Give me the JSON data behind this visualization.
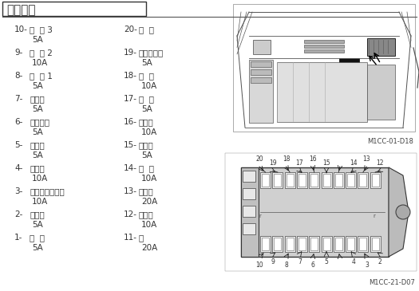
{
  "title": "保险丝盒",
  "bg_color": "#ffffff",
  "left_items": [
    {
      "num": "10-",
      "name": "选  购 3",
      "amp": "5A"
    },
    {
      "num": "9-",
      "name": "选  购 2",
      "amp": "10A"
    },
    {
      "num": "8-",
      "name": "选  购 1",
      "amp": "5A"
    },
    {
      "num": "7-",
      "name": "空调机",
      "amp": "5A"
    },
    {
      "num": "6-",
      "name": "电源接通",
      "amp": "5A"
    },
    {
      "num": "5-",
      "name": "开关盒",
      "amp": "5A"
    },
    {
      "num": "4-",
      "name": "电磁阀",
      "amp": "10A"
    },
    {
      "num": "3-",
      "name": "发动机控制马达",
      "amp": "10A"
    },
    {
      "num": "2-",
      "name": "控制器",
      "amp": "5A"
    },
    {
      "num": "1-",
      "name": "后  备",
      "amp": "5A"
    }
  ],
  "right_items": [
    {
      "num": "20-",
      "name": "备  用",
      "amp": ""
    },
    {
      "num": "19-",
      "name": "辉光继电器",
      "amp": "5A"
    },
    {
      "num": "18-",
      "name": "补  助",
      "amp": "10A"
    },
    {
      "num": "17-",
      "name": "室  灯",
      "amp": "5A"
    },
    {
      "num": "16-",
      "name": "点烟器",
      "amp": "10A"
    },
    {
      "num": "15-",
      "name": "收音机",
      "amp": "5A"
    },
    {
      "num": "14-",
      "name": "喇  叭",
      "amp": "10A"
    },
    {
      "num": "13-",
      "name": "加热器",
      "amp": "20A"
    },
    {
      "num": "12-",
      "name": "刮水器",
      "amp": "10A"
    },
    {
      "num": "11-",
      "name": "灯",
      "amp": "20A"
    }
  ],
  "fig_label1": "M1CC-01-D18",
  "fig_label2": "M1CC-21-D07",
  "text_color": "#333333",
  "title_fontsize": 11,
  "item_fontsize": 7.5
}
